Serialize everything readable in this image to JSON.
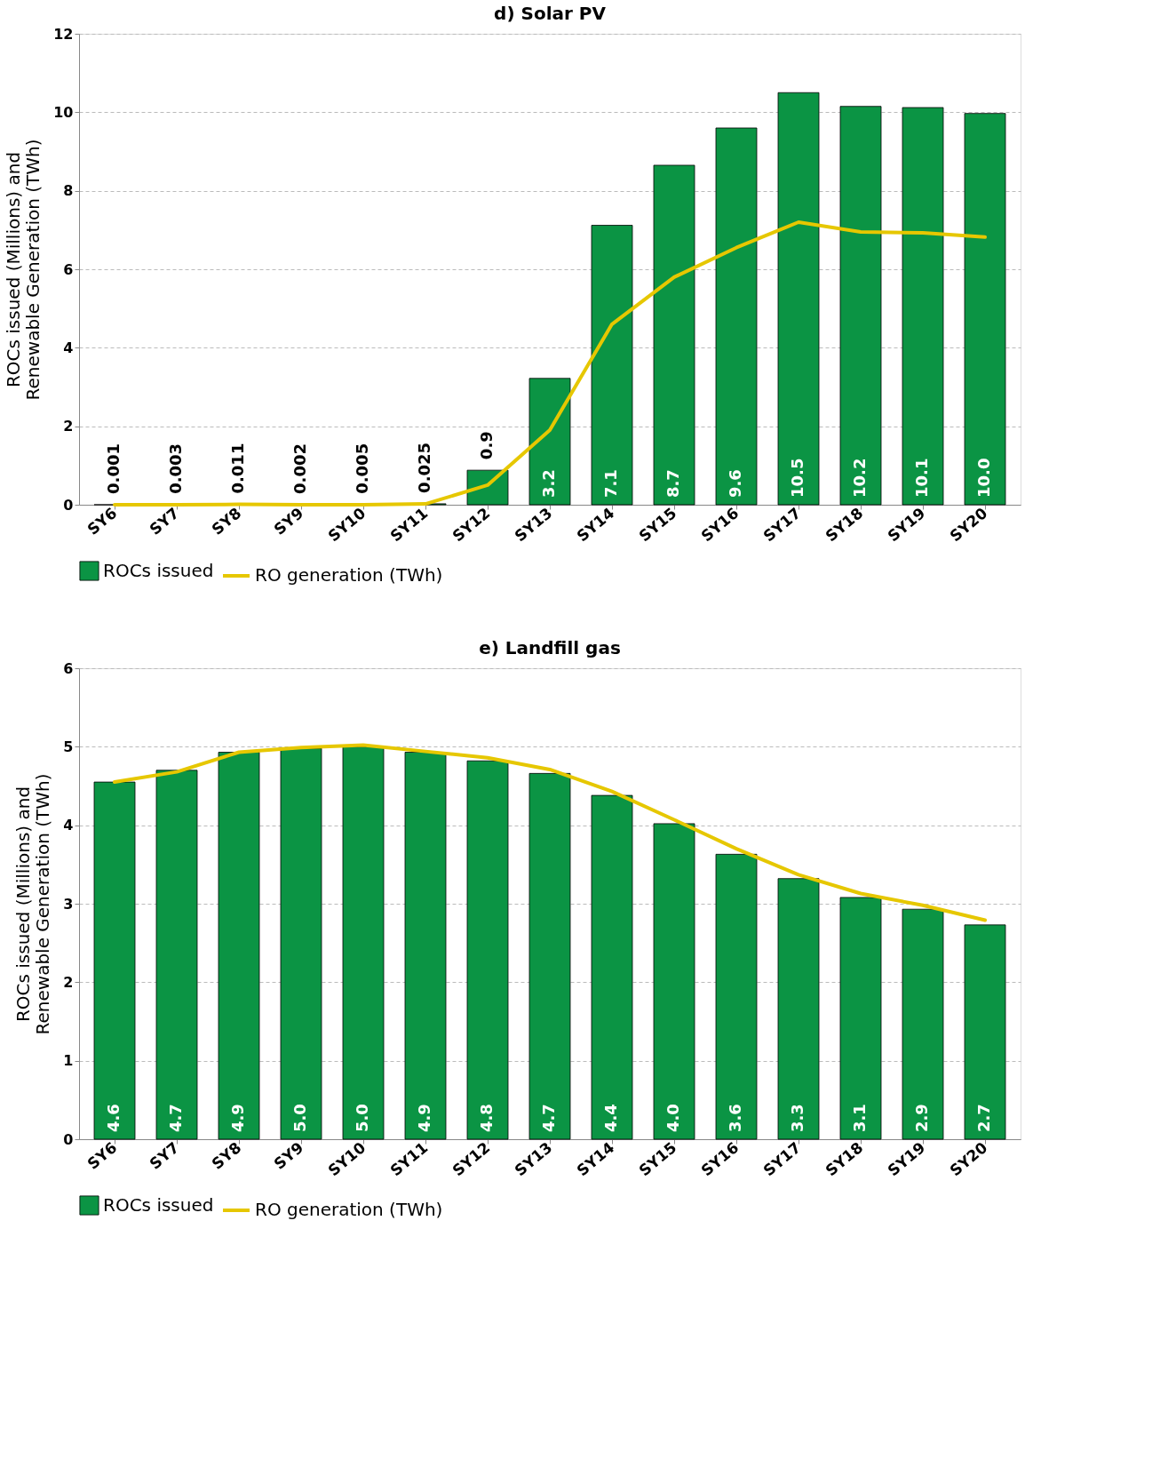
{
  "chart_data": [
    {
      "type": "bar",
      "title": "d) Solar PV",
      "ylabel": "ROCs issued (Millions) and Renewable Generation (TWh)",
      "categories": [
        "SY6",
        "SY7",
        "SY8",
        "SY9",
        "SY10",
        "SY11",
        "SY12",
        "SY13",
        "SY14",
        "SY15",
        "SY16",
        "SY17",
        "SY18",
        "SY19",
        "SY20"
      ],
      "ylim": [
        0,
        12
      ],
      "yticks": [
        0,
        2,
        4,
        6,
        8,
        10,
        12
      ],
      "grid": "y",
      "legend": "bottom",
      "series": [
        {
          "name": "ROCs issued",
          "color": "#0b9444",
          "values": [
            0.001,
            0.003,
            0.011,
            0.002,
            0.005,
            0.025,
            0.88,
            3.22,
            7.12,
            8.65,
            9.6,
            10.5,
            10.15,
            10.12,
            9.97
          ],
          "value_labels": [
            "0.001",
            "0.003",
            "0.011",
            "0.002",
            "0.005",
            "0.025",
            "0.9",
            "3.2",
            "7.1",
            "8.7",
            "9.6",
            "10.5",
            "10.2",
            "10.1",
            "10.0"
          ]
        },
        {
          "name": "RO generation (TWh)",
          "type": "line",
          "color": "#e6c700",
          "values": [
            0.0,
            0.0,
            0.01,
            0.0,
            0.0,
            0.02,
            0.5,
            1.9,
            4.6,
            5.8,
            6.55,
            7.2,
            6.95,
            6.93,
            6.82
          ]
        }
      ]
    },
    {
      "type": "bar",
      "title": "e) Landfill gas",
      "ylabel": "ROCs issued (Millions) and Renewable Generation (TWh)",
      "categories": [
        "SY6",
        "SY7",
        "SY8",
        "SY9",
        "SY10",
        "SY11",
        "SY12",
        "SY13",
        "SY14",
        "SY15",
        "SY16",
        "SY17",
        "SY18",
        "SY19",
        "SY20"
      ],
      "ylim": [
        0,
        6
      ],
      "yticks": [
        0,
        1,
        2,
        3,
        4,
        5,
        6
      ],
      "grid": "y",
      "legend": "bottom",
      "series": [
        {
          "name": "ROCs issued",
          "color": "#0b9444",
          "values": [
            4.55,
            4.7,
            4.93,
            4.98,
            5.0,
            4.93,
            4.82,
            4.66,
            4.38,
            4.02,
            3.63,
            3.32,
            3.08,
            2.93,
            2.73
          ],
          "value_labels": [
            "4.6",
            "4.7",
            "4.9",
            "5.0",
            "5.0",
            "4.9",
            "4.8",
            "4.7",
            "4.4",
            "4.0",
            "3.6",
            "3.3",
            "3.1",
            "2.9",
            "2.7"
          ]
        },
        {
          "name": "RO generation (TWh)",
          "type": "line",
          "color": "#e6c700",
          "values": [
            4.55,
            4.68,
            4.93,
            4.99,
            5.02,
            4.94,
            4.86,
            4.71,
            4.43,
            4.07,
            3.7,
            3.37,
            3.13,
            2.98,
            2.79
          ]
        }
      ]
    }
  ]
}
